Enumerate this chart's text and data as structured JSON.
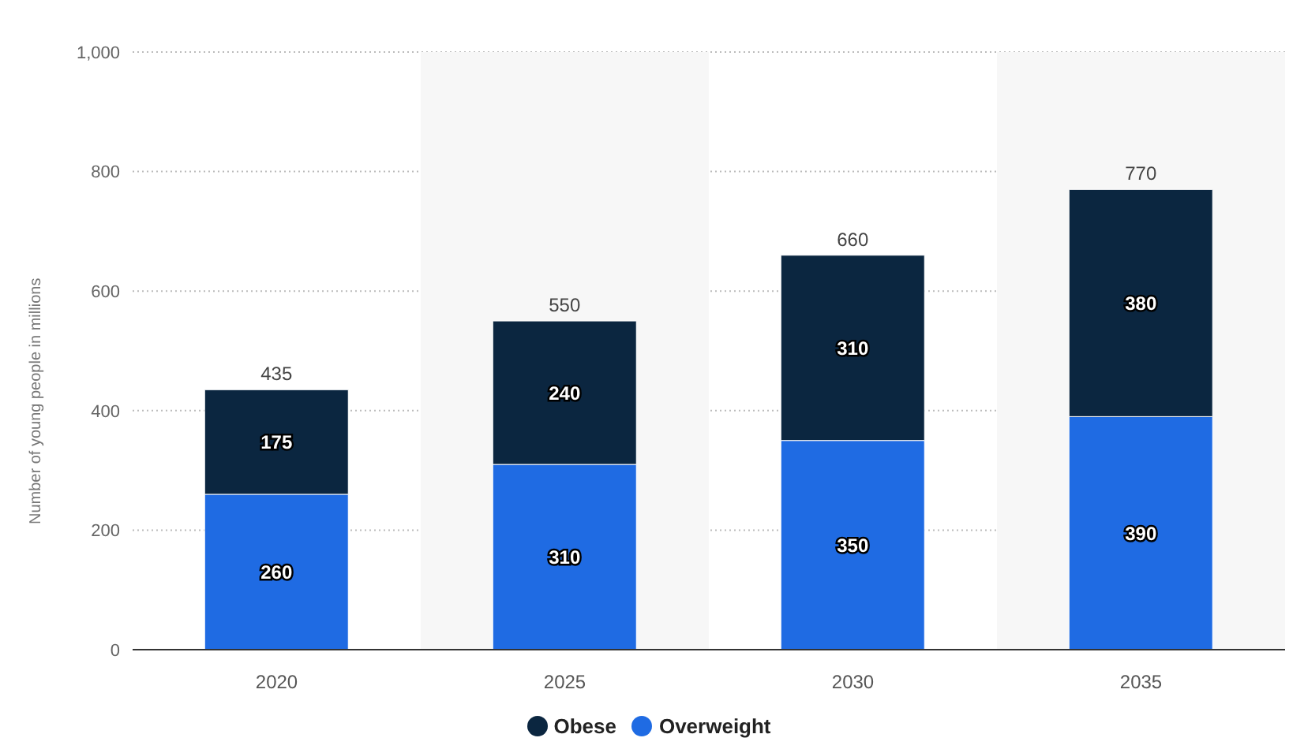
{
  "chart_data": {
    "type": "bar",
    "stacked": true,
    "ylabel": "Number of young people in millions",
    "categories": [
      "2020",
      "2025",
      "2030",
      "2035"
    ],
    "series": [
      {
        "name": "Overweight",
        "color": "#1f6be3",
        "values": [
          260,
          310,
          350,
          390
        ]
      },
      {
        "name": "Obese",
        "color": "#0b2640",
        "values": [
          175,
          240,
          310,
          380
        ]
      }
    ],
    "totals": [
      "435",
      "550",
      "660",
      "770"
    ],
    "data_labels": true,
    "ylim": [
      0,
      1000
    ],
    "yticks": [
      0,
      200,
      400,
      600,
      800,
      {
        "value": 1000,
        "label": "1,000"
      }
    ],
    "grid": "y",
    "legend": "bottom",
    "bands": [
      {
        "axis": "x",
        "from": "2025",
        "to": "2025",
        "color": "#f7f7f7"
      },
      {
        "axis": "x",
        "from": "2035",
        "to": "2035",
        "color": "#f7f7f7"
      }
    ]
  }
}
